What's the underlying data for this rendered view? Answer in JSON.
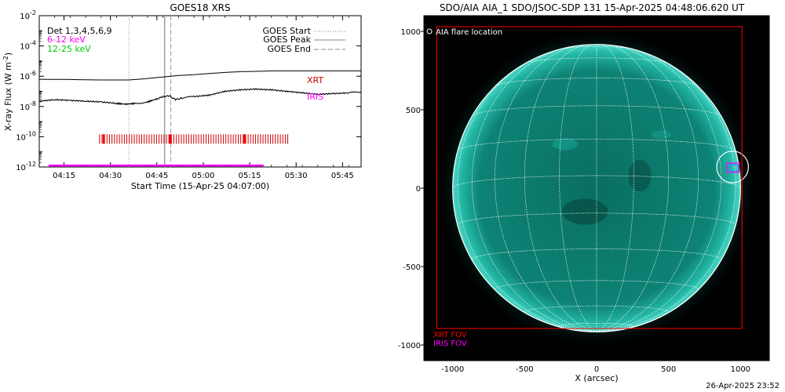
{
  "chart_data": [
    {
      "type": "line",
      "title": "GOES18 XRS",
      "xlabel": "Start Time (15-Apr-25 04:07:00)",
      "ylabel": "X-ray Flux (W m",
      "ylabel_sup": "-2",
      "ylabel_end": ")",
      "x_ticks": [
        "04:15",
        "04:30",
        "04:45",
        "05:00",
        "05:15",
        "05:30",
        "05:45"
      ],
      "x_tick_minutes": [
        8,
        23,
        38,
        53,
        68,
        83,
        98
      ],
      "x_range_minutes": [
        0,
        104
      ],
      "y_scale": "log",
      "y_range_exp": [
        -12,
        -2
      ],
      "y_ticks_exp": [
        -12,
        -10,
        -8,
        -6,
        -4,
        -2
      ],
      "y_tick_base": "10",
      "y_tick_sup": [
        "-12",
        "-10",
        "-8",
        "-6",
        "-4",
        "-2"
      ],
      "info_label": "Det 1,3,4,5,6,9",
      "legend_bands": [
        {
          "label": "6-12 keV",
          "color": "#ff00ff"
        },
        {
          "label": "12-25 keV",
          "color": "#00cc00"
        }
      ],
      "legend_lines": [
        {
          "label": "GOES Start",
          "style": "dotted",
          "minute": 29
        },
        {
          "label": "GOES Peak",
          "style": "solid",
          "minute": 40.5
        },
        {
          "label": "GOES End",
          "style": "dashed",
          "minute": 42.5
        }
      ],
      "series": [
        {
          "name": "",
          "color": "#000000",
          "x_minutes": [
            0,
            10,
            20,
            29,
            35,
            40,
            45,
            50,
            55,
            60,
            65,
            70,
            75,
            80,
            85,
            90,
            95,
            100,
            104
          ],
          "log_flux": [
            -6.2,
            -6.22,
            -6.25,
            -6.25,
            -6.15,
            -6.05,
            -5.95,
            -5.9,
            -5.82,
            -5.75,
            -5.7,
            -5.68,
            -5.65,
            -5.65,
            -5.65,
            -5.65,
            -5.65,
            -5.65,
            -5.65
          ]
        },
        {
          "name": "",
          "color": "#000000",
          "x_minutes": [
            0,
            5,
            10,
            15,
            20,
            25,
            28,
            31,
            35,
            38,
            40,
            42,
            44,
            46,
            50,
            55,
            60,
            65,
            70,
            75,
            80,
            85,
            90,
            95,
            100,
            104
          ],
          "log_flux": [
            -7.65,
            -7.55,
            -7.6,
            -7.65,
            -7.7,
            -7.8,
            -7.85,
            -7.8,
            -7.7,
            -7.5,
            -7.35,
            -7.3,
            -7.55,
            -7.45,
            -7.35,
            -7.25,
            -7.0,
            -6.9,
            -6.85,
            -6.9,
            -7.0,
            -7.1,
            -7.2,
            -7.15,
            -7.1,
            -7.05
          ]
        }
      ],
      "annotations": [
        {
          "text": "XRT",
          "color": "#cc0000"
        },
        {
          "text": "IRIS",
          "color": "#ff00ff"
        }
      ],
      "xrt_coverage": {
        "start_minute": 19.5,
        "end_minute": 80.5,
        "log_level": -10.15,
        "color": "#cc0000"
      },
      "iris_coverage": {
        "start_minute": 3,
        "end_minute": 72.5,
        "log_level": -11.9,
        "color": "#ff00ff"
      }
    },
    {
      "type": "heatmap",
      "title": "SDO/AIA AIA_1 SDO/JSOC-SDP 131 15-Apr-2025 04:48:06.620 UT",
      "xlabel": "X (arcsec)",
      "ylabel": "",
      "x_range": [
        -1200,
        1200
      ],
      "y_range": [
        -1100,
        1100
      ],
      "x_ticks": [
        -1000,
        -500,
        0,
        500,
        1000
      ],
      "y_ticks": [
        -1000,
        -500,
        0,
        500,
        1000
      ],
      "x_tick_labels": [
        "-1000",
        "-500",
        "0",
        "500",
        "1000"
      ],
      "y_tick_labels": [
        "-1000",
        "-500",
        "0",
        "500",
        "1000"
      ],
      "solar_radius": 1000,
      "disk_color": "#0f8f7e",
      "grid_color": "#ffffff",
      "legend": "AIA flare location",
      "flare_location": {
        "x": 945,
        "y": 135,
        "radius": 110
      },
      "xrt_fov": {
        "label": "XRT FOV",
        "color": "#ff0000",
        "x": [
          -1110,
          1010
        ],
        "y": [
          -1070,
          1030
        ]
      },
      "iris_fov": {
        "label": "IRIS FOV",
        "color": "#ff00ff",
        "x": [
          905,
          990
        ],
        "y": [
          95,
          160
        ]
      }
    }
  ],
  "timestamp": "26-Apr-2025 23:52"
}
